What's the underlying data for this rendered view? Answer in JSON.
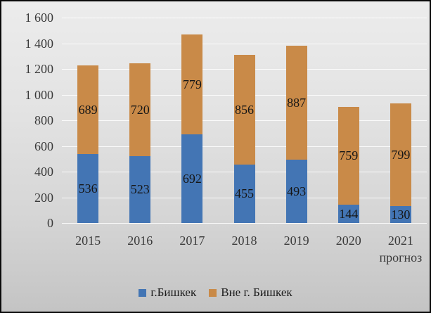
{
  "chart_data": {
    "type": "bar",
    "stacked": true,
    "title": "",
    "xlabel": "",
    "ylabel": "",
    "categories": [
      "2015",
      "2016",
      "2017",
      "2018",
      "2019",
      "2020",
      "2021 прогноз"
    ],
    "category_labels": [
      [
        "2015"
      ],
      [
        "2016"
      ],
      [
        "2017"
      ],
      [
        "2018"
      ],
      [
        "2019"
      ],
      [
        "2020"
      ],
      [
        "2021",
        "прогноз"
      ]
    ],
    "series": [
      {
        "name": "г.Бишкек",
        "color": "#4375B4",
        "values": [
          536,
          523,
          692,
          455,
          493,
          144,
          130
        ]
      },
      {
        "name": "Вне г. Бишкек",
        "color": "#C98A48",
        "values": [
          689,
          720,
          779,
          856,
          887,
          759,
          799
        ]
      }
    ],
    "ylim": [
      0,
      1600
    ],
    "ytick_step": 200,
    "ytick_labels": [
      "0",
      "200",
      "400",
      "600",
      "800",
      "1 000",
      "1 200",
      "1 400",
      "1 600"
    ],
    "grid": true,
    "legend_position": "bottom",
    "value_labels": true,
    "background": "gray-gradient"
  }
}
